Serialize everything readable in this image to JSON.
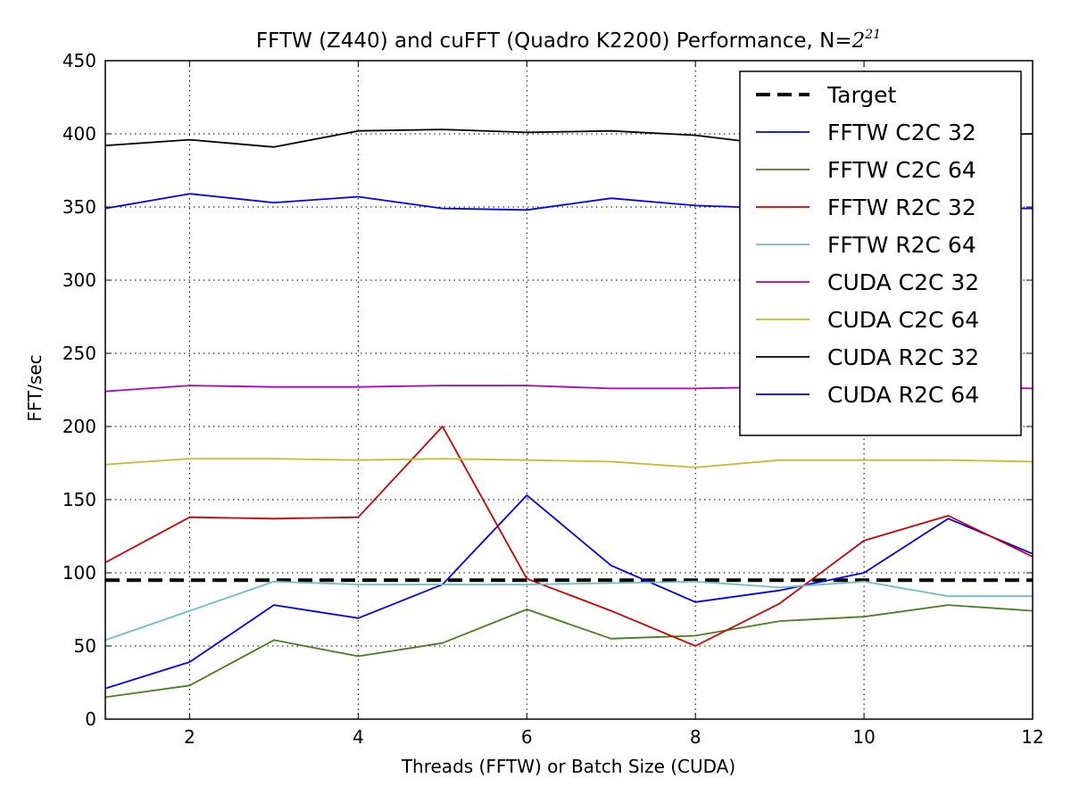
{
  "chart_data": {
    "type": "line",
    "title_main": "FFTW (Z440) and cuFFT (Quadro K2200) Performance, N=",
    "title_base": "2",
    "title_exp": "21",
    "xlabel": "Threads (FFTW) or Batch Size (CUDA)",
    "ylabel": "FFT/sec",
    "xlim": [
      1,
      12
    ],
    "ylim": [
      0,
      450
    ],
    "xticks": [
      2,
      4,
      6,
      8,
      10,
      12
    ],
    "yticks": [
      0,
      50,
      100,
      150,
      200,
      250,
      300,
      350,
      400,
      450
    ],
    "grid": true,
    "legend_position": "top-right",
    "x": [
      1,
      2,
      3,
      4,
      5,
      6,
      7,
      8,
      9,
      10,
      11,
      12
    ],
    "series": [
      {
        "name": "Target",
        "color": "#000000",
        "style": "dashed",
        "values": [
          95,
          95,
          95,
          95,
          95,
          95,
          95,
          95,
          95,
          95,
          95,
          95
        ]
      },
      {
        "name": "FFTW C2C 32",
        "color": "#0000ff",
        "style": "solid",
        "values": [
          21,
          39,
          78,
          69,
          92,
          153,
          105,
          80,
          88,
          100,
          137,
          113
        ]
      },
      {
        "name": "FFTW C2C 64",
        "color": "#4a7e20",
        "style": "solid",
        "values": [
          15,
          23,
          54,
          43,
          52,
          75,
          55,
          57,
          67,
          70,
          78,
          74
        ]
      },
      {
        "name": "FFTW R2C 32",
        "color": "#d40000",
        "style": "solid",
        "values": [
          107,
          138,
          137,
          138,
          200,
          96,
          74,
          50,
          79,
          122,
          139,
          111
        ]
      },
      {
        "name": "FFTW R2C 64",
        "color": "#6cc0c0",
        "style": "solid",
        "values": [
          54,
          74,
          94,
          92,
          92,
          92,
          93,
          94,
          90,
          94,
          84,
          84
        ]
      },
      {
        "name": "CUDA C2C 32",
        "color": "#b000c0",
        "style": "solid",
        "values": [
          224,
          228,
          227,
          227,
          228,
          228,
          226,
          226,
          227,
          227,
          227,
          226
        ]
      },
      {
        "name": "CUDA C2C 64",
        "color": "#bfbf30",
        "style": "solid",
        "values": [
          174,
          178,
          178,
          177,
          178,
          177,
          176,
          172,
          177,
          177,
          177,
          176
        ]
      },
      {
        "name": "CUDA R2C 32",
        "color": "#000000",
        "style": "solid",
        "values": [
          392,
          396,
          391,
          402,
          403,
          401,
          402,
          399,
          392,
          396,
          399,
          400
        ]
      },
      {
        "name": "CUDA R2C 64",
        "color": "#0000ff",
        "style": "solid",
        "values": [
          349,
          359,
          353,
          357,
          349,
          348,
          356,
          351,
          349,
          349,
          349,
          349
        ]
      }
    ]
  }
}
